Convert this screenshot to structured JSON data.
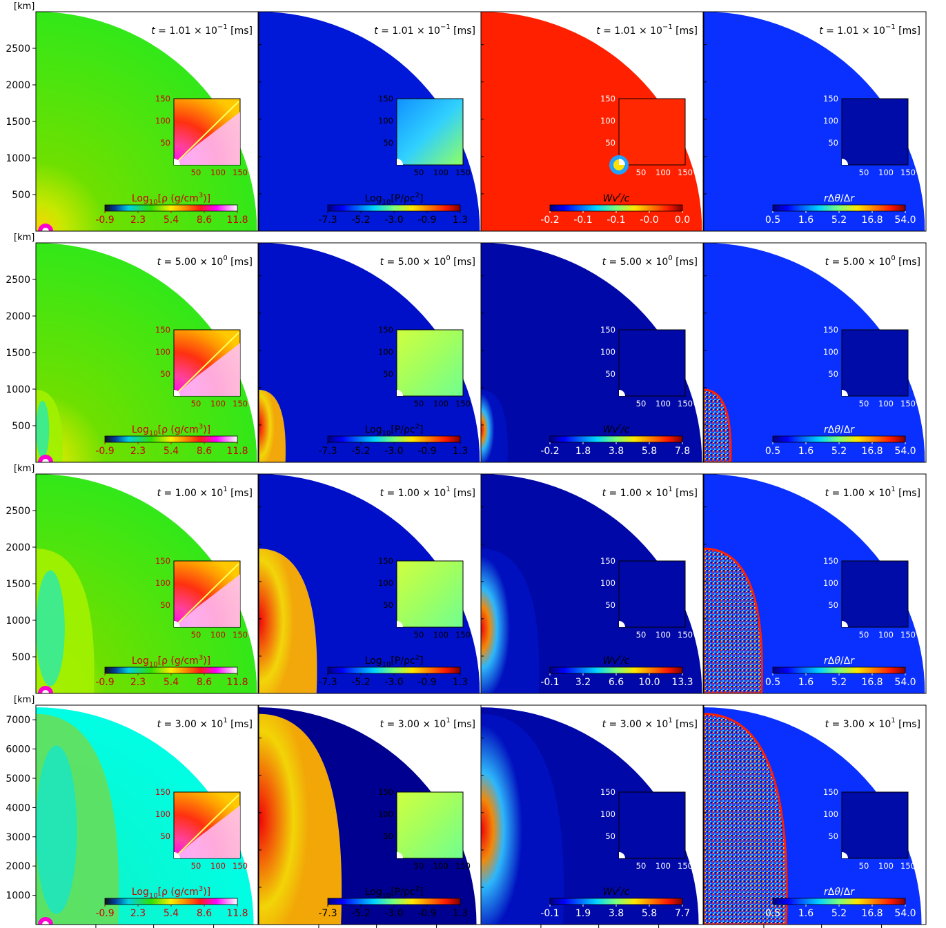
{
  "figure": {
    "row_unit_label": "[km]",
    "inset_ticks": [
      "50",
      "100",
      "150"
    ],
    "panel_types": [
      {
        "kind": "density",
        "cb_label_html": "Log<tspan font-size='10' dy='4'>10</tspan><tspan dy='-4'>[ρ (g/cm</tspan><tspan font-size='10' dy='-6'>3</tspan><tspan dy='6'>)]</tspan>",
        "label_color": "#cc0000",
        "tick_color": "#cc0000",
        "colors": "density"
      },
      {
        "kind": "pressure",
        "cb_label_html": "Log<tspan font-size='10' dy='4'>10</tspan><tspan dy='-4'>[P/ρc</tspan><tspan font-size='10' dy='-6'>2</tspan><tspan dy='6'>]</tspan>",
        "label_color": "#000000",
        "tick_color": "#000000",
        "colors": "jet"
      },
      {
        "kind": "velocity",
        "cb_label_html": "<tspan font-style='italic'>Wv</tspan><tspan font-size='10' dy='-6' font-style='italic'>r</tspan><tspan dy='6' font-style='italic'>/c</tspan>",
        "label_color": "#000000",
        "tick_color": "#ffffff",
        "colors": "jet"
      },
      {
        "kind": "resolution",
        "cb_label_html": "<tspan font-style='italic'>r</tspan>Δ<tspan font-style='italic'>θ</tspan>/Δ<tspan font-style='italic'>r</tspan>",
        "label_color": "#ffffff",
        "tick_color": "#ffffff",
        "colors": "jet"
      }
    ]
  },
  "chart_data": [
    {
      "type": "heatmap",
      "row": 1,
      "time_label": "1.01 × 10⁻¹",
      "time_mantissa": "1.01",
      "time_exp": "−1",
      "ylim": [
        0,
        3000
      ],
      "yticks": [
        "500",
        "1000",
        "1500",
        "2000",
        "2500"
      ],
      "panels": [
        {
          "variable": "density",
          "colorbar_ticks": [
            "-0.9",
            "2.3",
            "5.4",
            "8.6",
            "11.8"
          ]
        },
        {
          "variable": "pressure",
          "colorbar_ticks": [
            "-7.3",
            "-5.2",
            "-3.0",
            "-0.9",
            "1.3"
          ]
        },
        {
          "variable": "velocity",
          "colorbar_ticks": [
            "-0.2",
            "-0.1",
            "-0.1",
            "-0.0",
            "0.0"
          ]
        },
        {
          "variable": "resolution",
          "colorbar_ticks": [
            "0.5",
            "1.6",
            "5.2",
            "16.8",
            "54.0"
          ]
        }
      ]
    },
    {
      "type": "heatmap",
      "row": 2,
      "time_label": "5.00 × 10⁰",
      "time_mantissa": "5.00",
      "time_exp": "0",
      "ylim": [
        0,
        3000
      ],
      "yticks": [
        "500",
        "1000",
        "1500",
        "2000",
        "2500"
      ],
      "panels": [
        {
          "variable": "density",
          "colorbar_ticks": [
            "-0.9",
            "2.3",
            "5.4",
            "8.6",
            "11.8"
          ]
        },
        {
          "variable": "pressure",
          "colorbar_ticks": [
            "-7.3",
            "-5.2",
            "-3.0",
            "-0.9",
            "1.3"
          ]
        },
        {
          "variable": "velocity",
          "colorbar_ticks": [
            "-0.2",
            "1.8",
            "3.8",
            "5.8",
            "7.8"
          ]
        },
        {
          "variable": "resolution",
          "colorbar_ticks": [
            "0.5",
            "1.6",
            "5.2",
            "16.8",
            "54.0"
          ]
        }
      ]
    },
    {
      "type": "heatmap",
      "row": 3,
      "time_label": "1.00 × 10¹",
      "time_mantissa": "1.00",
      "time_exp": "1",
      "ylim": [
        0,
        3000
      ],
      "yticks": [
        "500",
        "1000",
        "1500",
        "2000",
        "2500"
      ],
      "panels": [
        {
          "variable": "density",
          "colorbar_ticks": [
            "-0.9",
            "2.3",
            "5.4",
            "8.6",
            "11.8"
          ]
        },
        {
          "variable": "pressure",
          "colorbar_ticks": [
            "-7.3",
            "-5.2",
            "-3.0",
            "-0.9",
            "1.3"
          ]
        },
        {
          "variable": "velocity",
          "colorbar_ticks": [
            "-0.1",
            "3.2",
            "6.6",
            "10.0",
            "13.3"
          ]
        },
        {
          "variable": "resolution",
          "colorbar_ticks": [
            "0.5",
            "1.6",
            "5.2",
            "16.8",
            "54.0"
          ]
        }
      ]
    },
    {
      "type": "heatmap",
      "row": 4,
      "time_label": "3.00 × 10¹",
      "time_mantissa": "3.00",
      "time_exp": "1",
      "ylim": [
        0,
        7500
      ],
      "yticks": [
        "1000",
        "2000",
        "3000",
        "4000",
        "5000",
        "6000",
        "7000"
      ],
      "panels": [
        {
          "variable": "density",
          "colorbar_ticks": [
            "-0.9",
            "2.3",
            "5.4",
            "8.6",
            "11.8"
          ]
        },
        {
          "variable": "pressure",
          "colorbar_ticks": [
            "-7.3",
            "-5.2",
            "-3.0",
            "-0.9",
            "1.3"
          ]
        },
        {
          "variable": "velocity",
          "colorbar_ticks": [
            "-0.1",
            "1.9",
            "3.8",
            "5.8",
            "7.7"
          ]
        },
        {
          "variable": "resolution",
          "colorbar_ticks": [
            "0.5",
            "1.6",
            "5.2",
            "16.8",
            "54.0"
          ]
        }
      ]
    }
  ]
}
